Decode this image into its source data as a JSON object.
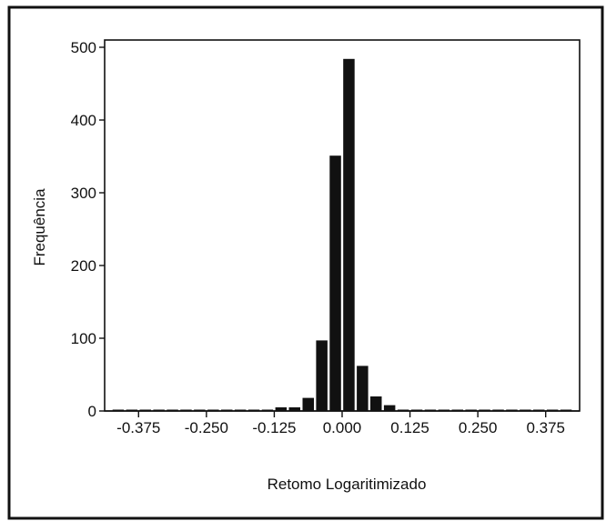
{
  "chart_data": {
    "type": "bar",
    "title": "",
    "xlabel": "Retomo Logaritimizado",
    "ylabel": "Frequência",
    "xlim": [
      -0.4375,
      0.4375
    ],
    "ylim": [
      0,
      510
    ],
    "grid": false,
    "x_ticks": [
      -0.375,
      -0.25,
      -0.125,
      0.0,
      0.125,
      0.25,
      0.375
    ],
    "x_tick_labels": [
      "-0.375",
      "-0.250",
      "-0.125",
      "0.000",
      "0.125",
      "0.250",
      "0.375"
    ],
    "y_ticks": [
      0,
      100,
      200,
      300,
      400,
      500
    ],
    "y_tick_labels": [
      "0",
      "100",
      "200",
      "300",
      "400",
      "500"
    ],
    "bin_width": 0.025,
    "bins": [
      {
        "x": -0.4125,
        "value": 0
      },
      {
        "x": -0.3875,
        "value": 0
      },
      {
        "x": -0.3625,
        "value": 0
      },
      {
        "x": -0.3375,
        "value": 0
      },
      {
        "x": -0.3125,
        "value": 0
      },
      {
        "x": -0.2875,
        "value": 0
      },
      {
        "x": -0.2625,
        "value": 0
      },
      {
        "x": -0.2375,
        "value": 0
      },
      {
        "x": -0.2125,
        "value": 0
      },
      {
        "x": -0.1875,
        "value": 0
      },
      {
        "x": -0.1625,
        "value": 0
      },
      {
        "x": -0.1375,
        "value": 1
      },
      {
        "x": -0.1125,
        "value": 5
      },
      {
        "x": -0.0875,
        "value": 5
      },
      {
        "x": -0.0625,
        "value": 18
      },
      {
        "x": -0.0375,
        "value": 97
      },
      {
        "x": -0.0125,
        "value": 351
      },
      {
        "x": 0.0125,
        "value": 484
      },
      {
        "x": 0.0375,
        "value": 62
      },
      {
        "x": 0.0625,
        "value": 20
      },
      {
        "x": 0.0875,
        "value": 8
      },
      {
        "x": 0.1125,
        "value": 1
      },
      {
        "x": 0.1375,
        "value": 1
      },
      {
        "x": 0.1625,
        "value": 0
      },
      {
        "x": 0.1875,
        "value": 0
      },
      {
        "x": 0.2125,
        "value": 0
      },
      {
        "x": 0.2375,
        "value": 0
      },
      {
        "x": 0.2625,
        "value": 0
      },
      {
        "x": 0.2875,
        "value": 0
      },
      {
        "x": 0.3125,
        "value": 0
      },
      {
        "x": 0.3375,
        "value": 0
      },
      {
        "x": 0.3625,
        "value": 0
      },
      {
        "x": 0.3875,
        "value": 0
      },
      {
        "x": 0.4125,
        "value": 0
      }
    ],
    "colors": {
      "bar": "#111111",
      "axis": "#111111",
      "frame": "#111111",
      "background": "#ffffff"
    }
  }
}
